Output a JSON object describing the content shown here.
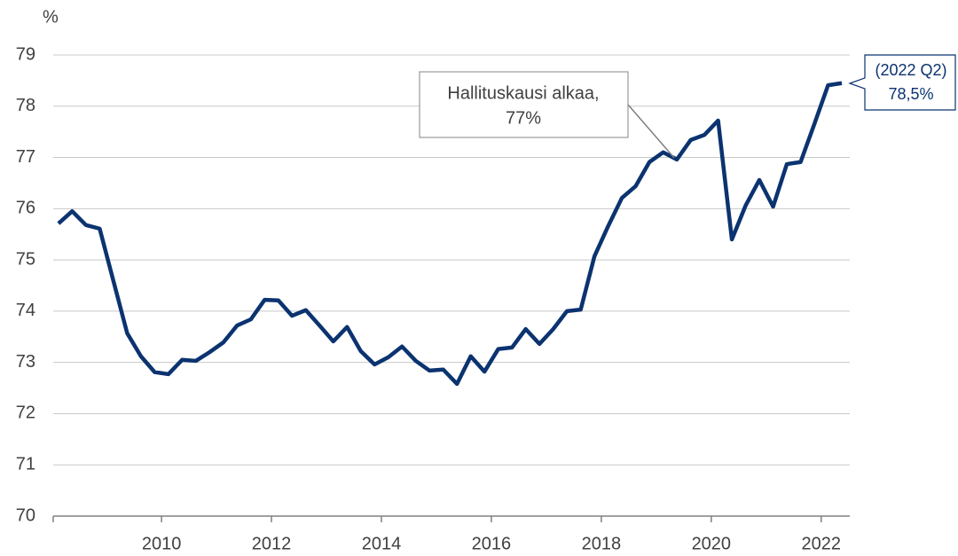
{
  "chart_data": {
    "type": "line",
    "ylabel": "%",
    "x": [
      2008.125,
      2008.375,
      2008.625,
      2008.875,
      2009.125,
      2009.375,
      2009.625,
      2009.875,
      2010.125,
      2010.375,
      2010.625,
      2010.875,
      2011.125,
      2011.375,
      2011.625,
      2011.875,
      2012.125,
      2012.375,
      2012.625,
      2012.875,
      2013.125,
      2013.375,
      2013.625,
      2013.875,
      2014.125,
      2014.375,
      2014.625,
      2014.875,
      2015.125,
      2015.375,
      2015.625,
      2015.875,
      2016.125,
      2016.375,
      2016.625,
      2016.875,
      2017.125,
      2017.375,
      2017.625,
      2017.875,
      2018.125,
      2018.375,
      2018.625,
      2018.875,
      2019.125,
      2019.375,
      2019.625,
      2019.875,
      2020.125,
      2020.375,
      2020.625,
      2020.875,
      2021.125,
      2021.375,
      2021.625,
      2021.875,
      2022.125,
      2022.375
    ],
    "series": [
      {
        "color": "#0b3370",
        "values": [
          75.71,
          75.95,
          75.68,
          75.61,
          74.59,
          73.57,
          73.12,
          72.81,
          72.77,
          73.05,
          73.03,
          73.2,
          73.39,
          73.72,
          73.84,
          74.22,
          74.21,
          73.91,
          74.02,
          73.72,
          73.41,
          73.69,
          73.22,
          72.96,
          73.1,
          73.31,
          73.03,
          72.84,
          72.86,
          72.58,
          73.12,
          72.82,
          73.26,
          73.29,
          73.65,
          73.36,
          73.65,
          74.0,
          74.03,
          75.07,
          75.66,
          76.21,
          76.44,
          76.91,
          77.1,
          76.96,
          77.34,
          77.44,
          77.72,
          75.4,
          76.06,
          76.56,
          76.04,
          76.87,
          76.91,
          77.65,
          78.41,
          78.45
        ]
      }
    ],
    "xlim": [
      2008.03,
      2022.52
    ],
    "xticks": [
      2010,
      2012,
      2014,
      2016,
      2018,
      2020,
      2022
    ],
    "ylim": [
      70,
      79
    ],
    "yticks": [
      70,
      71,
      72,
      73,
      74,
      75,
      76,
      77,
      78,
      79
    ],
    "grid": true,
    "annotations": [
      [
        "Hallituskausi alkaa,",
        "77%"
      ],
      [
        "(2022 Q2)",
        "78,5%"
      ]
    ]
  }
}
